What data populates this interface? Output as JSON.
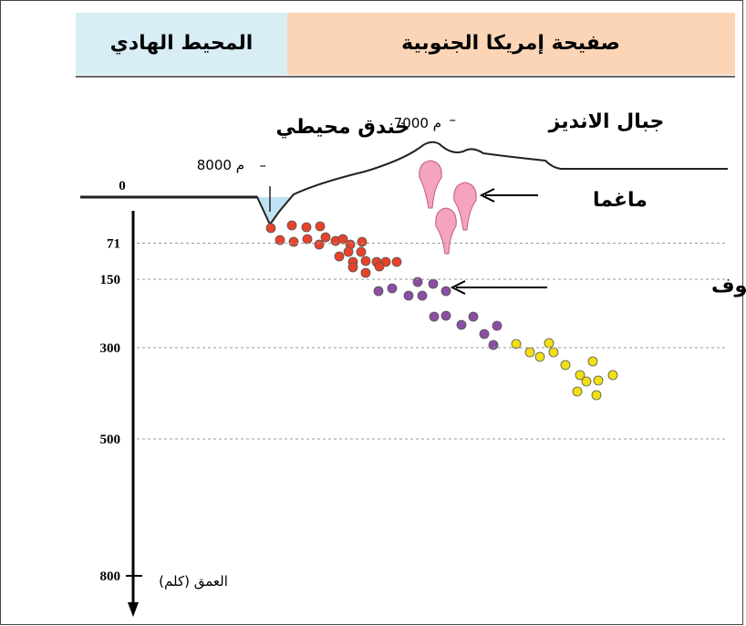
{
  "header": {
    "left": "المحيط الهادي",
    "right": "صفيحة إمريكا الجنوبية"
  },
  "labels": {
    "mountains": "جبال الانديز",
    "trench": "خندق محيطي",
    "magma": "ماغما",
    "benioff": "مستوى بنيوف",
    "mountain_height": "7000 م",
    "trench_depth": "8000 م",
    "axis": "العمق (كلم)"
  },
  "depth_ticks": [
    0,
    71,
    150,
    300,
    500,
    800
  ]
}
